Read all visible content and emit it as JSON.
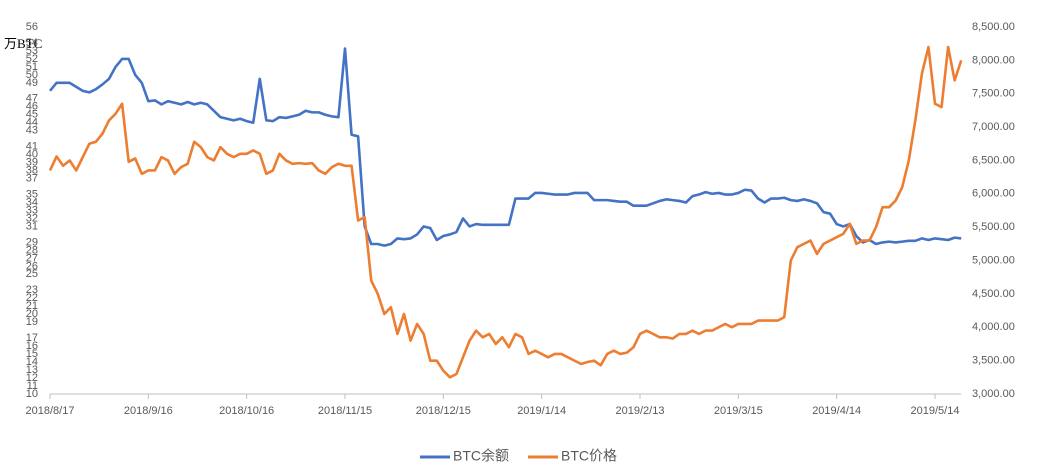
{
  "chart_data": {
    "type": "line",
    "y_label": "万BTC",
    "categories": [
      "2018/8/17",
      null,
      null,
      null,
      null,
      null,
      null,
      null,
      null,
      null,
      null,
      null,
      null,
      null,
      null,
      "2018/9/16",
      null,
      null,
      null,
      null,
      null,
      null,
      null,
      null,
      null,
      null,
      null,
      null,
      null,
      null,
      "2018/10/16",
      null,
      null,
      null,
      null,
      null,
      null,
      null,
      null,
      null,
      null,
      null,
      null,
      null,
      null,
      "2018/11/15",
      null,
      null,
      null,
      null,
      null,
      null,
      null,
      null,
      null,
      null,
      null,
      null,
      null,
      null,
      "2018/12/15",
      null,
      null,
      null,
      null,
      null,
      null,
      null,
      null,
      null,
      null,
      null,
      null,
      null,
      null,
      "2019/1/14",
      null,
      null,
      null,
      null,
      null,
      null,
      null,
      null,
      null,
      null,
      null,
      null,
      null,
      null,
      "2019/2/13",
      null,
      null,
      null,
      null,
      null,
      null,
      null,
      null,
      null,
      null,
      null,
      null,
      null,
      null,
      "2019/3/15",
      null,
      null,
      null,
      null,
      null,
      null,
      null,
      null,
      null,
      null,
      null,
      null,
      null,
      null,
      "2019/4/14",
      null,
      null,
      null,
      null,
      null,
      null,
      null,
      null,
      null,
      null,
      null,
      null,
      null,
      null,
      "2019/5/14",
      null,
      null,
      null,
      null
    ],
    "series": [
      {
        "name": "BTC余额",
        "color": "#4472c4",
        "values": [
          48,
          49,
          49,
          49,
          48.5,
          48,
          47.8,
          48.2,
          48.8,
          49.5,
          51,
          52,
          52,
          50,
          49,
          46.7,
          46.8,
          46.3,
          46.7,
          46.5,
          46.3,
          46.6,
          46.3,
          46.5,
          46.3,
          45.5,
          44.7,
          44.5,
          44.3,
          44.5,
          44.2,
          44,
          49.5,
          44.3,
          44.2,
          44.7,
          44.6,
          44.8,
          45,
          45.5,
          45.3,
          45.3,
          45,
          44.8,
          44.7,
          53.3,
          42.5,
          42.3,
          31,
          28.8,
          28.8,
          28.6,
          28.8,
          29.5,
          29.4,
          29.5,
          30,
          31,
          30.8,
          29.3,
          29.8,
          30,
          30.3,
          32,
          31,
          31.3,
          31.2,
          31.2,
          31.2,
          31.2,
          31.2,
          34.5,
          34.5,
          34.5,
          35.2,
          35.2,
          35.1,
          35,
          35,
          35,
          35.2,
          35.2,
          35.2,
          34.3,
          34.3,
          34.3,
          34.2,
          34.1,
          34.1,
          33.6,
          33.6,
          33.6,
          33.9,
          34.2,
          34.4,
          34.3,
          34.2,
          34,
          34.8,
          35,
          35.3,
          35.1,
          35.2,
          35,
          35,
          35.2,
          35.6,
          35.5,
          34.5,
          34,
          34.5,
          34.5,
          34.6,
          34.3,
          34.2,
          34.4,
          34.2,
          33.9,
          32.8,
          32.6,
          31.3,
          31,
          31.3,
          29.8,
          29,
          29.3,
          28.8,
          29,
          29.1,
          29,
          29.1,
          29.2,
          29.2,
          29.5,
          29.3,
          29.5,
          29.4,
          29.3,
          29.6,
          29.5
        ]
      },
      {
        "name": "BTC价格",
        "color": "#ed7d31",
        "axis": "y2",
        "values": [
          6350,
          6560,
          6420,
          6500,
          6350,
          6550,
          6750,
          6780,
          6900,
          7100,
          7200,
          7350,
          6480,
          6530,
          6300,
          6350,
          6350,
          6550,
          6500,
          6300,
          6400,
          6450,
          6780,
          6700,
          6550,
          6500,
          6700,
          6600,
          6550,
          6600,
          6600,
          6650,
          6600,
          6300,
          6350,
          6600,
          6500,
          6450,
          6460,
          6450,
          6460,
          6350,
          6300,
          6400,
          6450,
          6420,
          6420,
          5600,
          5650,
          4700,
          4500,
          4200,
          4300,
          3900,
          4200,
          3800,
          4050,
          3900,
          3500,
          3500,
          3350,
          3250,
          3300,
          3550,
          3800,
          3950,
          3850,
          3900,
          3750,
          3850,
          3700,
          3900,
          3850,
          3600,
          3650,
          3600,
          3550,
          3600,
          3600,
          3550,
          3500,
          3450,
          3480,
          3500,
          3430,
          3600,
          3650,
          3600,
          3620,
          3700,
          3900,
          3950,
          3900,
          3850,
          3850,
          3830,
          3900,
          3900,
          3950,
          3900,
          3950,
          3950,
          4000,
          4050,
          4000,
          4050,
          4050,
          4050,
          4100,
          4100,
          4100,
          4100,
          4150,
          5000,
          5200,
          5250,
          5300,
          5100,
          5250,
          5300,
          5350,
          5400,
          5550,
          5250,
          5300,
          5300,
          5500,
          5800,
          5800,
          5900,
          6100,
          6500,
          7100,
          7800,
          8200,
          7350,
          7300,
          8200,
          7700,
          8000
        ]
      }
    ],
    "ylim": [
      10,
      56
    ],
    "yticks": [
      10,
      11,
      12,
      13,
      14,
      15,
      16,
      17,
      19,
      20,
      21,
      22,
      23,
      25,
      26,
      27,
      28,
      29,
      31,
      32,
      33,
      34,
      35,
      37,
      38,
      39,
      40,
      41,
      43,
      44,
      45,
      46,
      47,
      49,
      50,
      51,
      52,
      53,
      54,
      56
    ],
    "y2lim": [
      3000,
      8500
    ],
    "y2ticks": [
      {
        "value": 3000,
        "label": "3,000.00"
      },
      {
        "value": 3500,
        "label": "3,500.00"
      },
      {
        "value": 4000,
        "label": "4,000.00"
      },
      {
        "value": 4500,
        "label": "4,500.00"
      },
      {
        "value": 5000,
        "label": "5,000.00"
      },
      {
        "value": 5500,
        "label": "5,500.00"
      },
      {
        "value": 6000,
        "label": "6,000.00"
      },
      {
        "value": 6500,
        "label": "6,500.00"
      },
      {
        "value": 7000,
        "label": "7,000.00"
      },
      {
        "value": 7500,
        "label": "7,500.00"
      },
      {
        "value": 8000,
        "label": "8,000.00"
      },
      {
        "value": 8500,
        "label": "8,500.00"
      }
    ],
    "grid": false,
    "legend": "bottom"
  }
}
